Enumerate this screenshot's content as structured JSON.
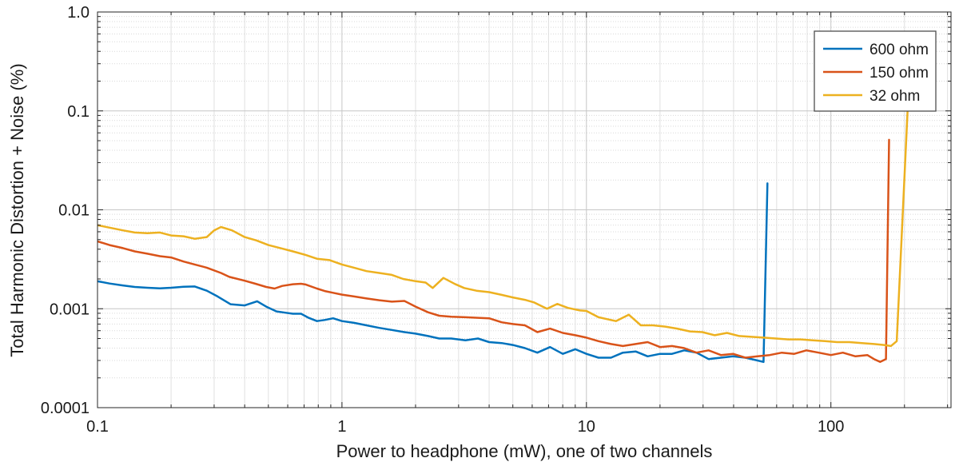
{
  "figure": {
    "background": "#ffffff",
    "text_color": "#1a1a1a"
  },
  "chart_data": {
    "type": "line",
    "title": "",
    "xlabel": "Power to headphone (mW), one of two channels",
    "ylabel": "Total Harmonic Distortion + Noise (%)",
    "x_scale": "log",
    "y_scale": "log",
    "xlim": [
      0.1,
      310
    ],
    "ylim": [
      0.0001,
      1.0
    ],
    "x_ticks": {
      "values": [
        0.1,
        1,
        10,
        100
      ],
      "labels": [
        "0.1",
        "1",
        "10",
        "100"
      ]
    },
    "y_ticks": {
      "values": [
        1.0,
        0.1,
        0.01,
        0.001,
        0.0001
      ],
      "labels": [
        "1.0",
        "0.1",
        "0.01",
        "0.001",
        "0.0001"
      ]
    },
    "grid": {
      "major": true,
      "minor": true,
      "major_color": "#c6c6c6",
      "minor_color": "#d9d9d9",
      "minor_vertical_color": "#e0e0e0"
    },
    "axis_color": "#262626",
    "legend": {
      "position": "top-right",
      "background": "#ffffff",
      "border_color": "#4d4d4d"
    },
    "series": [
      {
        "name": "600 ohm",
        "color": "#0072BD",
        "points": [
          [
            0.1,
            0.0019
          ],
          [
            0.112,
            0.0018
          ],
          [
            0.127,
            0.00172
          ],
          [
            0.142,
            0.00166
          ],
          [
            0.16,
            0.00163
          ],
          [
            0.18,
            0.00161
          ],
          [
            0.2,
            0.00163
          ],
          [
            0.225,
            0.00167
          ],
          [
            0.25,
            0.00168
          ],
          [
            0.28,
            0.00152
          ],
          [
            0.31,
            0.00133
          ],
          [
            0.35,
            0.00111
          ],
          [
            0.4,
            0.00108
          ],
          [
            0.45,
            0.00119
          ],
          [
            0.49,
            0.00105
          ],
          [
            0.54,
            0.00094
          ],
          [
            0.59,
            0.00091
          ],
          [
            0.63,
            0.00089
          ],
          [
            0.68,
            0.00089
          ],
          [
            0.73,
            0.00081
          ],
          [
            0.79,
            0.00075
          ],
          [
            0.85,
            0.00077
          ],
          [
            0.92,
            0.0008
          ],
          [
            1.0,
            0.00075
          ],
          [
            1.12,
            0.00072
          ],
          [
            1.26,
            0.00068
          ],
          [
            1.42,
            0.00064
          ],
          [
            1.6,
            0.00061
          ],
          [
            1.8,
            0.00058
          ],
          [
            2.0,
            0.00056
          ],
          [
            2.25,
            0.00053
          ],
          [
            2.5,
            0.0005
          ],
          [
            2.8,
            0.0005
          ],
          [
            3.2,
            0.00048
          ],
          [
            3.6,
            0.0005
          ],
          [
            4.0,
            0.00046
          ],
          [
            4.5,
            0.00045
          ],
          [
            5.0,
            0.00043
          ],
          [
            5.6,
            0.0004
          ],
          [
            6.3,
            0.00036
          ],
          [
            7.1,
            0.00041
          ],
          [
            8.0,
            0.00035
          ],
          [
            9.0,
            0.00039
          ],
          [
            10,
            0.00035
          ],
          [
            11.2,
            0.00032
          ],
          [
            12.6,
            0.00032
          ],
          [
            14.1,
            0.00036
          ],
          [
            15.9,
            0.00037
          ],
          [
            17.8,
            0.00033
          ],
          [
            20,
            0.00035
          ],
          [
            22.4,
            0.00035
          ],
          [
            25.1,
            0.00038
          ],
          [
            28.2,
            0.00036
          ],
          [
            31.6,
            0.00031
          ],
          [
            35.5,
            0.00032
          ],
          [
            39.8,
            0.00033
          ],
          [
            44.7,
            0.00032
          ],
          [
            50.1,
            0.0003
          ],
          [
            53,
            0.00029
          ],
          [
            55,
            0.0185
          ]
        ]
      },
      {
        "name": "150 ohm",
        "color": "#D95319",
        "points": [
          [
            0.1,
            0.0048
          ],
          [
            0.112,
            0.0044
          ],
          [
            0.127,
            0.0041
          ],
          [
            0.142,
            0.0038
          ],
          [
            0.16,
            0.0036
          ],
          [
            0.18,
            0.0034
          ],
          [
            0.2,
            0.0033
          ],
          [
            0.225,
            0.003
          ],
          [
            0.25,
            0.0028
          ],
          [
            0.28,
            0.0026
          ],
          [
            0.32,
            0.0023
          ],
          [
            0.346,
            0.0021
          ],
          [
            0.4,
            0.00192
          ],
          [
            0.443,
            0.00179
          ],
          [
            0.49,
            0.00166
          ],
          [
            0.53,
            0.0016
          ],
          [
            0.57,
            0.0017
          ],
          [
            0.63,
            0.00177
          ],
          [
            0.68,
            0.00179
          ],
          [
            0.71,
            0.00176
          ],
          [
            0.79,
            0.0016
          ],
          [
            0.85,
            0.00151
          ],
          [
            0.92,
            0.00145
          ],
          [
            1.0,
            0.00139
          ],
          [
            1.12,
            0.00133
          ],
          [
            1.26,
            0.00127
          ],
          [
            1.42,
            0.00122
          ],
          [
            1.6,
            0.00118
          ],
          [
            1.8,
            0.0012
          ],
          [
            2.0,
            0.00105
          ],
          [
            2.25,
            0.00092
          ],
          [
            2.5,
            0.00085
          ],
          [
            2.8,
            0.00083
          ],
          [
            3.2,
            0.00082
          ],
          [
            3.6,
            0.00081
          ],
          [
            4.0,
            0.0008
          ],
          [
            4.5,
            0.00073
          ],
          [
            5.0,
            0.0007
          ],
          [
            5.6,
            0.00068
          ],
          [
            6.3,
            0.00058
          ],
          [
            7.1,
            0.00063
          ],
          [
            8.0,
            0.00057
          ],
          [
            9.0,
            0.00054
          ],
          [
            10,
            0.00051
          ],
          [
            11.2,
            0.00047
          ],
          [
            12.6,
            0.00044
          ],
          [
            14.1,
            0.00042
          ],
          [
            15.9,
            0.00044
          ],
          [
            17.8,
            0.00046
          ],
          [
            20,
            0.00041
          ],
          [
            22.4,
            0.00042
          ],
          [
            25.1,
            0.0004
          ],
          [
            28.2,
            0.00036
          ],
          [
            31.6,
            0.00038
          ],
          [
            35.5,
            0.00034
          ],
          [
            39.8,
            0.00035
          ],
          [
            44.7,
            0.00032
          ],
          [
            50.1,
            0.00033
          ],
          [
            56.2,
            0.00034
          ],
          [
            63,
            0.00036
          ],
          [
            70.8,
            0.00035
          ],
          [
            79.4,
            0.00038
          ],
          [
            89.1,
            0.00036
          ],
          [
            100,
            0.00034
          ],
          [
            112,
            0.00036
          ],
          [
            126,
            0.00033
          ],
          [
            141,
            0.00034
          ],
          [
            150,
            0.00031
          ],
          [
            159,
            0.00029
          ],
          [
            168,
            0.00031
          ],
          [
            173,
            0.051
          ]
        ]
      },
      {
        "name": "32 ohm",
        "color": "#EDB120",
        "points": [
          [
            0.1,
            0.007
          ],
          [
            0.112,
            0.0066
          ],
          [
            0.127,
            0.0062
          ],
          [
            0.142,
            0.0059
          ],
          [
            0.16,
            0.0058
          ],
          [
            0.18,
            0.0059
          ],
          [
            0.2,
            0.0055
          ],
          [
            0.225,
            0.0054
          ],
          [
            0.25,
            0.0051
          ],
          [
            0.28,
            0.0053
          ],
          [
            0.3,
            0.0062
          ],
          [
            0.32,
            0.0067
          ],
          [
            0.355,
            0.0062
          ],
          [
            0.4,
            0.0053
          ],
          [
            0.447,
            0.0049
          ],
          [
            0.5,
            0.0044
          ],
          [
            0.56,
            0.0041
          ],
          [
            0.63,
            0.0038
          ],
          [
            0.71,
            0.0035
          ],
          [
            0.79,
            0.0032
          ],
          [
            0.89,
            0.0031
          ],
          [
            1.0,
            0.0028
          ],
          [
            1.12,
            0.0026
          ],
          [
            1.26,
            0.0024
          ],
          [
            1.42,
            0.0023
          ],
          [
            1.6,
            0.0022
          ],
          [
            1.78,
            0.002
          ],
          [
            2.0,
            0.0019
          ],
          [
            2.2,
            0.00184
          ],
          [
            2.35,
            0.00162
          ],
          [
            2.6,
            0.00205
          ],
          [
            2.9,
            0.00178
          ],
          [
            3.16,
            0.00162
          ],
          [
            3.55,
            0.00152
          ],
          [
            4.0,
            0.00147
          ],
          [
            4.5,
            0.00138
          ],
          [
            5.0,
            0.0013
          ],
          [
            5.6,
            0.00123
          ],
          [
            6.1,
            0.00116
          ],
          [
            6.9,
            0.001
          ],
          [
            7.6,
            0.00112
          ],
          [
            8.4,
            0.00102
          ],
          [
            9.4,
            0.00096
          ],
          [
            10,
            0.00095
          ],
          [
            11.2,
            0.00082
          ],
          [
            13.2,
            0.00075
          ],
          [
            14.9,
            0.00087
          ],
          [
            16.7,
            0.00068
          ],
          [
            18.7,
            0.00068
          ],
          [
            21,
            0.00066
          ],
          [
            23.5,
            0.00063
          ],
          [
            26.5,
            0.00059
          ],
          [
            29.8,
            0.00058
          ],
          [
            33.5,
            0.00054
          ],
          [
            37.6,
            0.00057
          ],
          [
            42.2,
            0.00053
          ],
          [
            47.3,
            0.00052
          ],
          [
            53.1,
            0.00051
          ],
          [
            59.6,
            0.0005
          ],
          [
            66.9,
            0.00049
          ],
          [
            75.1,
            0.00049
          ],
          [
            84.3,
            0.00048
          ],
          [
            94.6,
            0.00047
          ],
          [
            106,
            0.00046
          ],
          [
            119,
            0.00046
          ],
          [
            134,
            0.00045
          ],
          [
            150,
            0.00044
          ],
          [
            165,
            0.00043
          ],
          [
            176,
            0.00042
          ],
          [
            186,
            0.00047
          ],
          [
            206,
            0.102
          ]
        ]
      }
    ]
  }
}
